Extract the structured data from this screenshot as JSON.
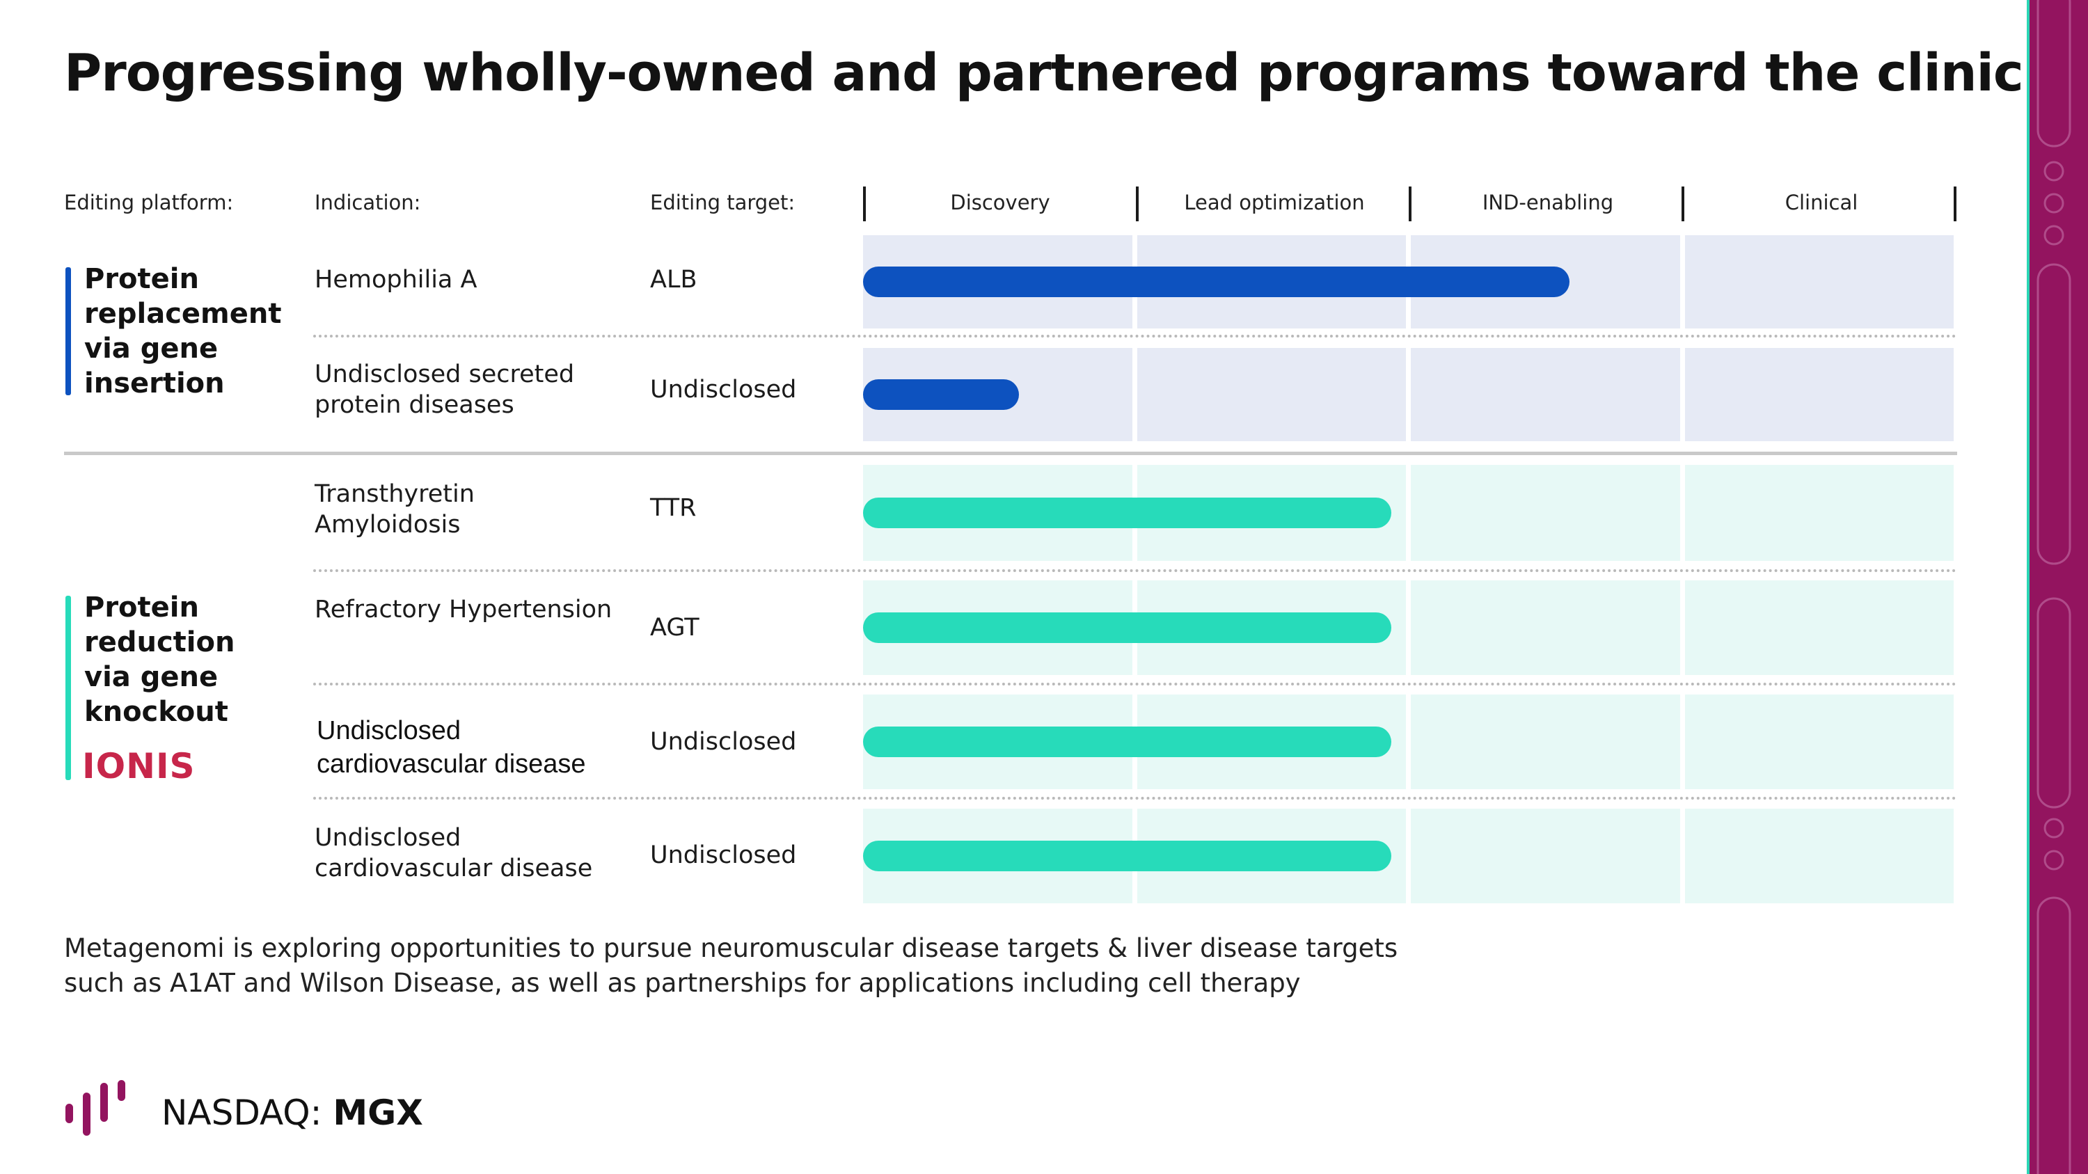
{
  "title": "Progressing wholly-owned and partnered programs toward the clinic",
  "headers": {
    "platform": "Editing platform:",
    "indication": "Indication:",
    "target": "Editing target:"
  },
  "stages": [
    "Discovery",
    "Lead optimization",
    "IND-enabling",
    "Clinical"
  ],
  "colors": {
    "replacement_bar": "#0d52bf",
    "replacement_bg": "#e6eaf5",
    "reduction_bar": "#27dbba",
    "reduction_bg": "#e7f9f6",
    "accent_right": "#93145f",
    "ionis": "#c7264a"
  },
  "groups": [
    {
      "platform": "Protein replacement via gene insertion",
      "programs": [
        {
          "indication": "Hemophilia A",
          "target": "ALB",
          "progress_stages": 2.58
        },
        {
          "indication": "Undisclosed secreted protein diseases",
          "target": "Undisclosed",
          "progress_stages": 0.57
        }
      ]
    },
    {
      "platform": "Protein reduction via gene knockout",
      "partner_logo": "IONIS",
      "programs": [
        {
          "indication": "Transthyretin Amyloidosis",
          "target": "TTR",
          "progress_stages": 1.93
        },
        {
          "indication": "Refractory Hypertension",
          "target": "AGT",
          "progress_stages": 1.93
        },
        {
          "indication": "Undisclosed cardiovascular disease",
          "target": "Undisclosed",
          "progress_stages": 1.93
        },
        {
          "indication": "Undisclosed cardiovascular disease",
          "target": "Undisclosed",
          "progress_stages": 1.93
        }
      ]
    }
  ],
  "footnote": "Metagenomi is exploring opportunities to pursue neuromuscular disease targets & liver disease targets such as A1AT and Wilson Disease, as well as partnerships for applications including cell therapy",
  "footer": {
    "exchange": "NASDAQ:",
    "ticker": "MGX"
  }
}
